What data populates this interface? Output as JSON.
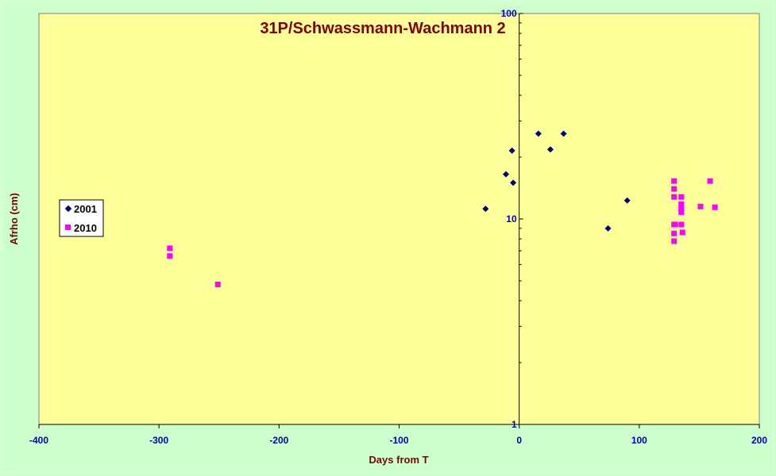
{
  "chart_data": {
    "type": "scatter",
    "title": "31P/Schwassmann-Wachmann 2",
    "xlabel": "Days from T",
    "ylabel": "Afrho (cm)",
    "xlim": [
      -400,
      200
    ],
    "ylim": [
      1,
      100
    ],
    "y_scale": "log",
    "x_ticks": [
      "-400",
      "-300",
      "-200",
      "-100",
      "0",
      "100",
      "200"
    ],
    "y_ticks": [
      "1",
      "10",
      "100"
    ],
    "grid": false,
    "legend_position": "left",
    "series": [
      {
        "name": "2001",
        "marker": "diamond",
        "color": "#000080",
        "points": [
          {
            "x": -28,
            "y": 11.2
          },
          {
            "x": -11,
            "y": 16.5
          },
          {
            "x": -6,
            "y": 21.5
          },
          {
            "x": -5,
            "y": 15.0
          },
          {
            "x": 16,
            "y": 26.0
          },
          {
            "x": 26,
            "y": 21.8
          },
          {
            "x": 37,
            "y": 26.0
          },
          {
            "x": 74,
            "y": 9.0
          },
          {
            "x": 90,
            "y": 12.3
          }
        ]
      },
      {
        "name": "2010",
        "marker": "square",
        "color": "#ff00ff",
        "points": [
          {
            "x": -291,
            "y": 7.2
          },
          {
            "x": -291,
            "y": 6.6
          },
          {
            "x": -251,
            "y": 4.8
          },
          {
            "x": 129,
            "y": 15.3
          },
          {
            "x": 129,
            "y": 14.0
          },
          {
            "x": 129,
            "y": 12.8
          },
          {
            "x": 129,
            "y": 9.4
          },
          {
            "x": 129,
            "y": 8.5
          },
          {
            "x": 129,
            "y": 7.8
          },
          {
            "x": 130,
            "y": 9.4
          },
          {
            "x": 135,
            "y": 12.8
          },
          {
            "x": 135,
            "y": 11.8
          },
          {
            "x": 135,
            "y": 11.2
          },
          {
            "x": 135,
            "y": 10.8
          },
          {
            "x": 135,
            "y": 9.4
          },
          {
            "x": 136,
            "y": 8.6
          },
          {
            "x": 151,
            "y": 11.5
          },
          {
            "x": 159,
            "y": 15.3
          },
          {
            "x": 163,
            "y": 11.4
          }
        ]
      }
    ]
  }
}
